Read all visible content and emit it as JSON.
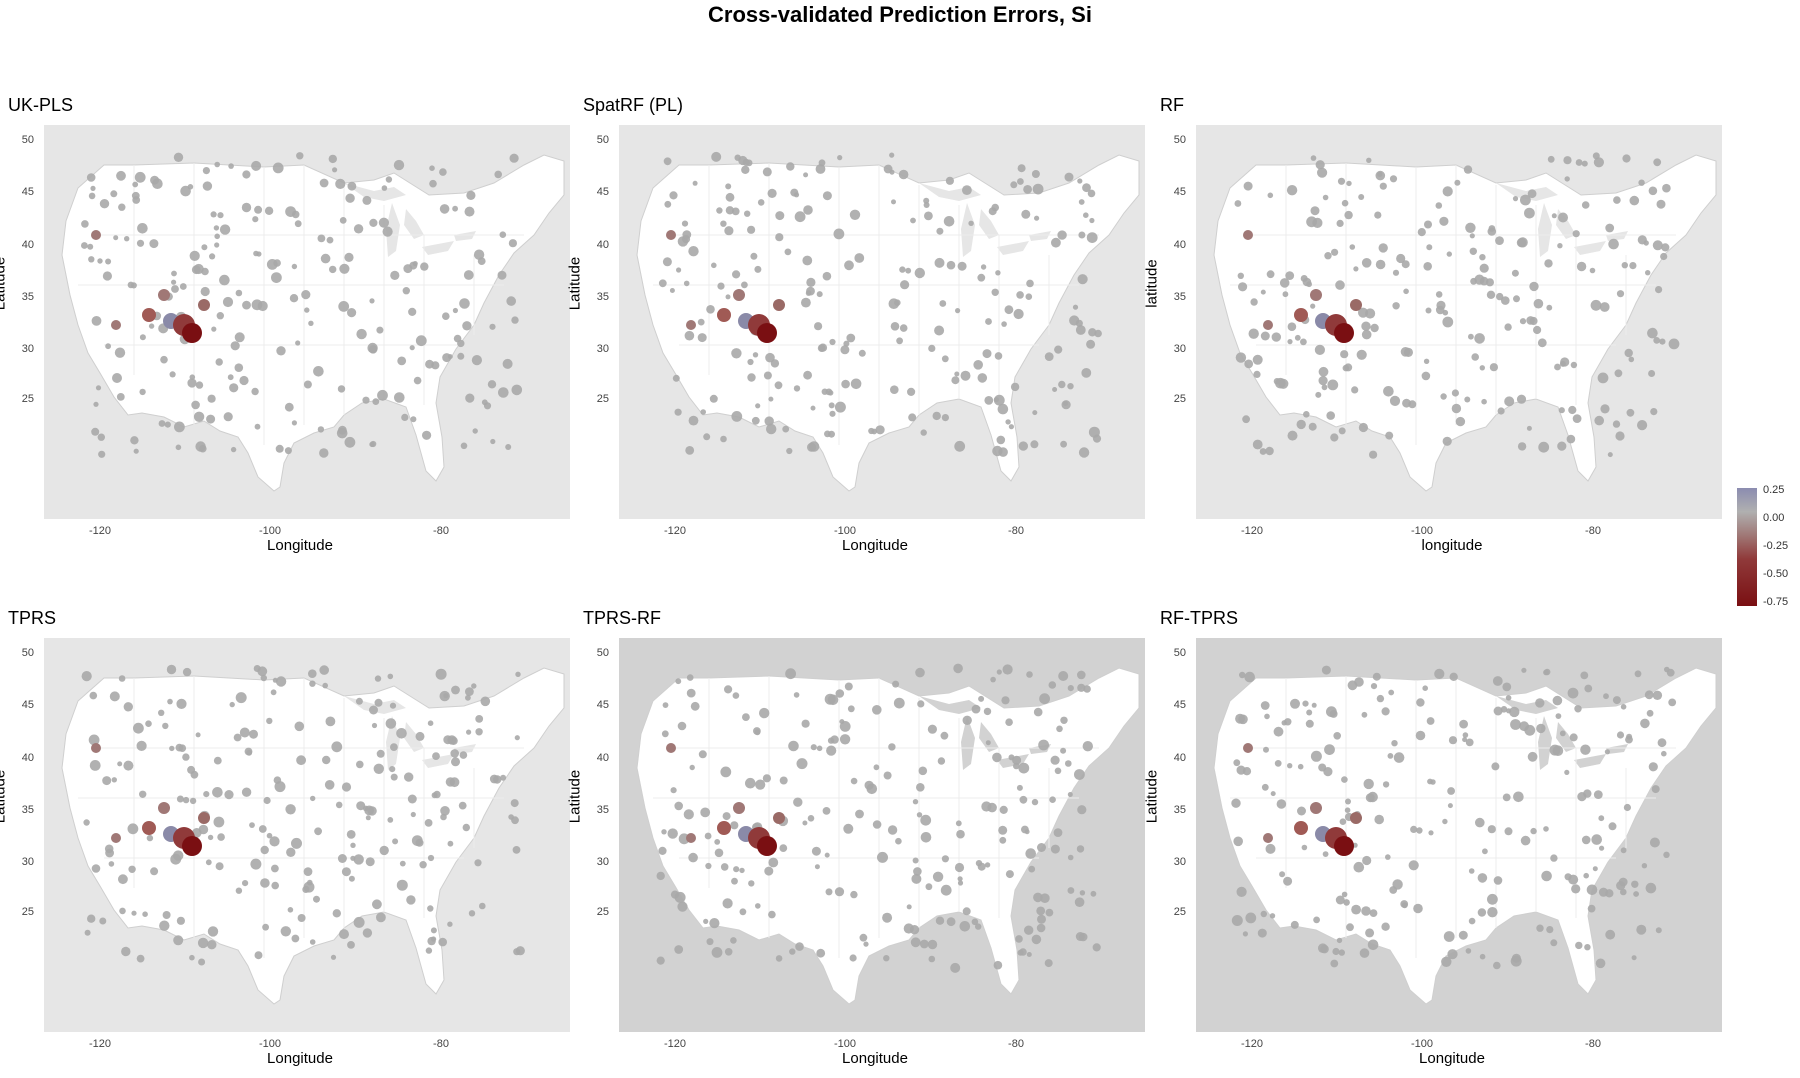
{
  "title": "Cross-validated Prediction Errors, Si",
  "panels": [
    {
      "title": "UK-PLS",
      "xlabel": "Longitude",
      "ylabel": "Latitude",
      "shade": false
    },
    {
      "title": "SpatRF (PL)",
      "xlabel": "Longitude",
      "ylabel": "Latitude",
      "shade": false
    },
    {
      "title": "RF",
      "xlabel": "longitude",
      "ylabel": "latitude",
      "shade": false
    },
    {
      "title": "TPRS",
      "xlabel": "Longitude",
      "ylabel": "Latitude",
      "shade": false
    },
    {
      "title": "TPRS-RF",
      "xlabel": "Longitude",
      "ylabel": "Latitude",
      "shade": true
    },
    {
      "title": "RF-TPRS",
      "xlabel": "Longitude",
      "ylabel": "Latitude",
      "shade": true
    }
  ],
  "axes": {
    "y_ticks": [
      "50",
      "45",
      "40",
      "35",
      "30",
      "25"
    ],
    "x_ticks": [
      "-120",
      "-100",
      "-80"
    ]
  },
  "legend": {
    "labels": [
      "0.25",
      "0.00",
      "-0.25",
      "-0.50",
      "-0.75"
    ],
    "colors": {
      "high": "#8b8cb0",
      "mid": "#b0b0b0",
      "low": "#7a0f12"
    }
  },
  "colors": {
    "land": "#ffffff",
    "water": "#e6e6e6",
    "dark_water": "#d2d2d2",
    "neutral_point": "#a9a9a9"
  }
}
